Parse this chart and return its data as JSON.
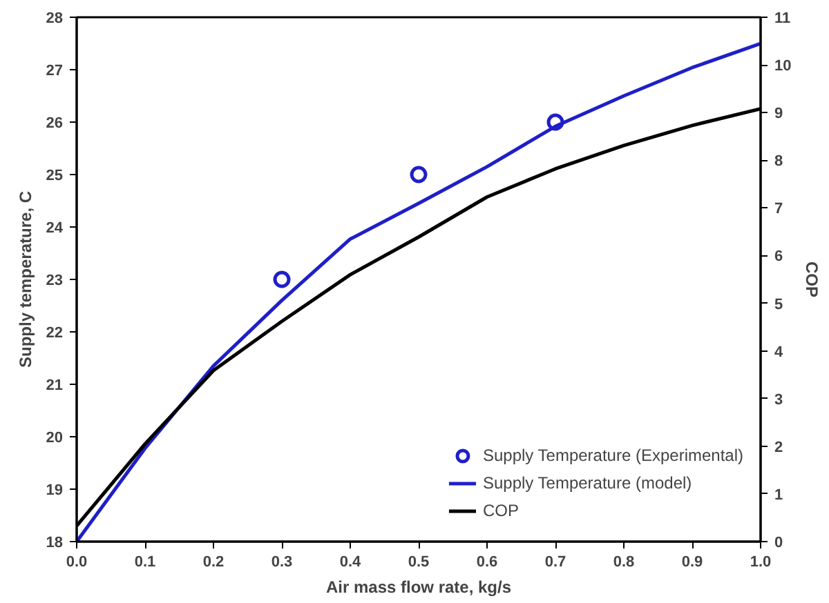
{
  "chart_data": {
    "type": "line",
    "xlabel": "Air mass flow rate, kg/s",
    "ylabel": "Supply temperature, C",
    "y2label": "COP",
    "xlim": [
      0,
      1
    ],
    "xticks": [
      {
        "value": 0,
        "label": "0.0"
      },
      0.1,
      0.2,
      0.3,
      0.4,
      0.5,
      0.6,
      0.7,
      0.8,
      0.9,
      {
        "value": 1,
        "label": "1.0"
      }
    ],
    "ylim": [
      18,
      28
    ],
    "yticks": [
      18,
      19,
      20,
      21,
      22,
      23,
      24,
      25,
      26,
      27,
      28
    ],
    "y2lim": [
      0,
      11
    ],
    "y2ticks": [
      0,
      1,
      2,
      3,
      4,
      5,
      6,
      7,
      8,
      9,
      10,
      11
    ],
    "grid": false,
    "legend": "bottom right",
    "series": [
      {
        "name": "Supply Temperature (Experimental)",
        "type": "scatter",
        "marker": "circle",
        "color": "#1f1fc8",
        "x": [
          0.3,
          0.5,
          0.7
        ],
        "values": [
          23,
          25,
          26
        ]
      },
      {
        "name": "Supply Temperature (model)",
        "marker": "none",
        "color": "#1f1fc8",
        "x": [
          0,
          0.1,
          0.2,
          0.3,
          0.4,
          0.5,
          0.6,
          0.7,
          0.8,
          0.9,
          1.0
        ],
        "values": [
          18.0,
          19.78,
          21.35,
          22.6,
          23.77,
          24.45,
          25.15,
          25.92,
          26.5,
          27.04,
          27.5
        ]
      },
      {
        "name": "COP",
        "marker": "none",
        "axis": "y2",
        "color": "#000000",
        "x": [
          0,
          0.1,
          0.2,
          0.3,
          0.4,
          0.5,
          0.6,
          0.7,
          0.8,
          0.9,
          1.0
        ],
        "values": [
          0.33,
          2.05,
          3.59,
          4.62,
          5.6,
          6.39,
          7.23,
          7.82,
          8.31,
          8.73,
          9.08
        ]
      }
    ]
  }
}
